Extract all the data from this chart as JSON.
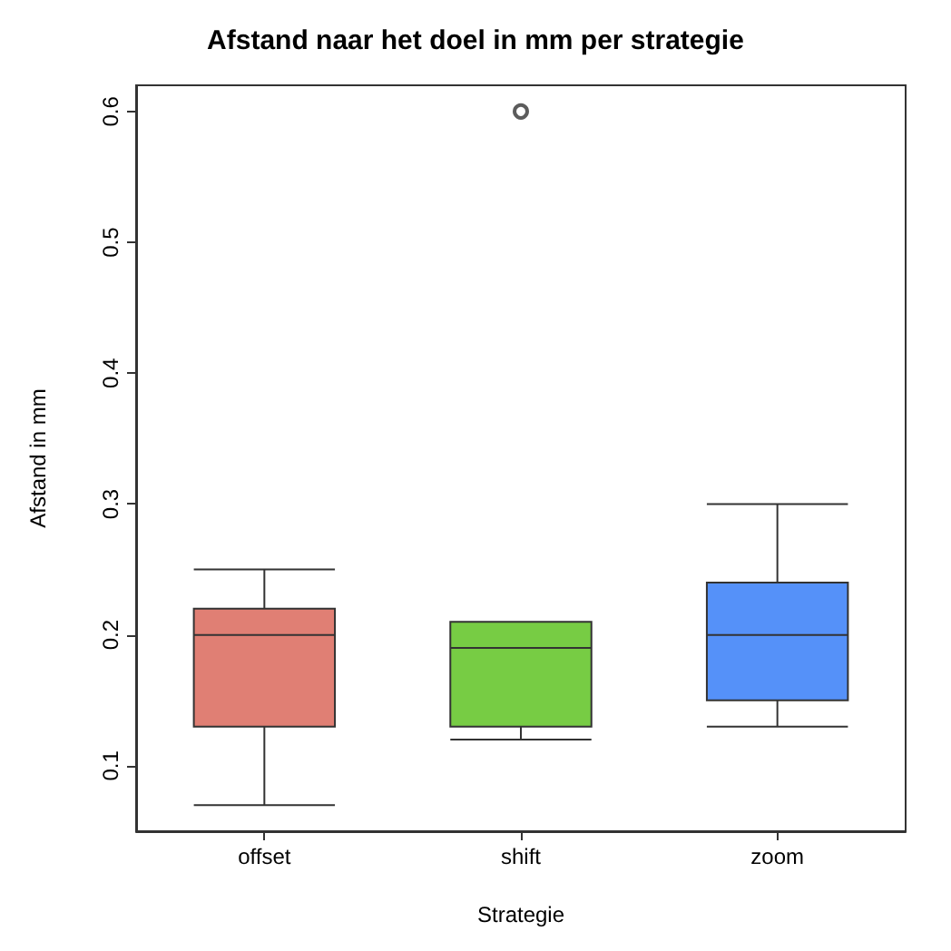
{
  "chart_data": {
    "type": "box",
    "title": "Afstand naar het doel in mm per strategie",
    "xlabel": "Strategie",
    "ylabel": "Afstand in mm",
    "categories": [
      "offset",
      "shift",
      "zoom"
    ],
    "colors": [
      "#e07f74",
      "#77cc44",
      "#5591f9"
    ],
    "boxes": [
      {
        "low": 0.07,
        "q1": 0.13,
        "median": 0.2,
        "q3": 0.22,
        "high": 0.25
      },
      {
        "low": 0.12,
        "q1": 0.13,
        "median": 0.19,
        "q3": 0.21,
        "high": 0.21,
        "outliers": [
          0.6
        ]
      },
      {
        "low": 0.13,
        "q1": 0.15,
        "median": 0.2,
        "q3": 0.24,
        "high": 0.3
      }
    ],
    "ylim": [
      0.05,
      0.62
    ],
    "yticks": [
      0.1,
      0.2,
      0.3,
      0.4,
      0.5,
      0.6
    ],
    "grid": false
  }
}
